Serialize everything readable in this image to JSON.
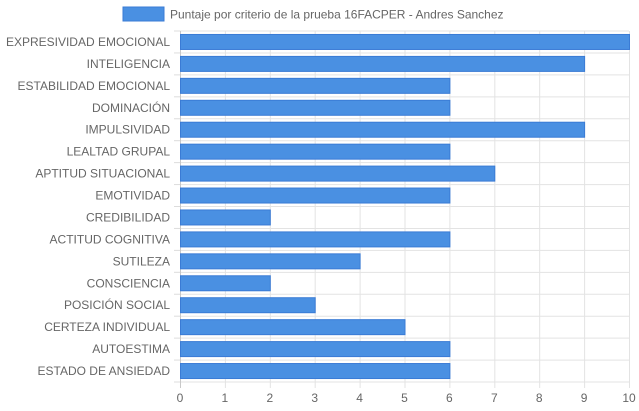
{
  "chart_data": {
    "type": "bar",
    "orientation": "horizontal",
    "legend_position": "top",
    "grid": true,
    "xlim": [
      0,
      10
    ],
    "x_ticks": [
      "0",
      "1",
      "2",
      "3",
      "4",
      "5",
      "6",
      "7",
      "8",
      "9",
      "10"
    ],
    "categories": [
      "EXPRESIVIDAD EMOCIONAL",
      "INTELIGENCIA",
      "ESTABILIDAD EMOCIONAL",
      "DOMINACIÓN",
      "IMPULSIVIDAD",
      "LEALTAD GRUPAL",
      "APTITUD SITUACIONAL",
      "EMOTIVIDAD",
      "CREDIBILIDAD",
      "ACTITUD COGNITIVA",
      "SUTILEZA",
      "CONSCIENCIA",
      "POSICIÓN SOCIAL",
      "CERTEZA INDIVIDUAL",
      "AUTOESTIMA",
      "ESTADO DE ANSIEDAD"
    ],
    "series": [
      {
        "name": "Puntaje por criterio de la prueba 16FACPER - Andres Sanchez",
        "color": "#4a90e2",
        "values": [
          10,
          9,
          6,
          6,
          9,
          6,
          7,
          6,
          2,
          6,
          4,
          2,
          3,
          5,
          6,
          6
        ]
      }
    ]
  }
}
